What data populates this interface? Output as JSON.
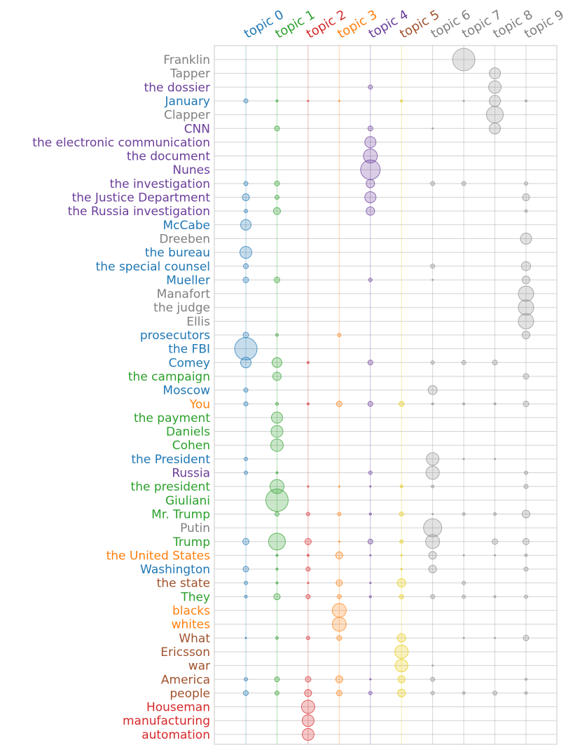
{
  "chart_data": {
    "type": "scatter",
    "grid": true,
    "topics": [
      {
        "label": "topic 0",
        "color": "#1f77b4"
      },
      {
        "label": "topic 1",
        "color": "#2ca02c"
      },
      {
        "label": "topic 2",
        "color": "#d62728"
      },
      {
        "label": "topic 3",
        "color": "#ff7f0e"
      },
      {
        "label": "topic 4",
        "color": "#6a3d9a"
      },
      {
        "label": "topic 5",
        "color": "#a0522d"
      },
      {
        "label": "topic 6",
        "color": "#7f7f7f"
      },
      {
        "label": "topic 7",
        "color": "#7f7f7f"
      },
      {
        "label": "topic 8",
        "color": "#7f7f7f"
      },
      {
        "label": "topic 9",
        "color": "#7f7f7f"
      }
    ],
    "marker_colors": {
      "0": "#1f77b4",
      "1": "#2ca02c",
      "2": "#d62728",
      "3": "#ff7f0e",
      "4": "#6a3d9a",
      "5": "#e6c800",
      "6": "#8c8c8c",
      "7": "#8c8c8c",
      "8": "#8c8c8c",
      "9": "#8c8c8c"
    },
    "rows": [
      {
        "label": "Franklin",
        "topic": 7,
        "points": [
          [
            7,
            16
          ]
        ]
      },
      {
        "label": "Tapper",
        "topic": 7,
        "points": [
          [
            8,
            8
          ]
        ]
      },
      {
        "label": "the dossier",
        "topic": 4,
        "points": [
          [
            4,
            3
          ],
          [
            8,
            9
          ]
        ]
      },
      {
        "label": "January",
        "topic": 0,
        "points": [
          [
            0,
            3
          ],
          [
            1,
            1.5
          ],
          [
            2,
            1
          ],
          [
            3,
            1
          ],
          [
            5,
            1.5
          ],
          [
            7,
            1
          ],
          [
            8,
            8
          ],
          [
            9,
            1.5
          ]
        ]
      },
      {
        "label": "Clapper",
        "topic": 7,
        "points": [
          [
            8,
            12
          ]
        ]
      },
      {
        "label": "CNN",
        "topic": 4,
        "points": [
          [
            1,
            3.5
          ],
          [
            4,
            3.5
          ],
          [
            6,
            1
          ],
          [
            8,
            8
          ]
        ]
      },
      {
        "label": "the electronic communication",
        "topic": 4,
        "points": [
          [
            4,
            8
          ]
        ]
      },
      {
        "label": "the document",
        "topic": 4,
        "points": [
          [
            4,
            10
          ]
        ]
      },
      {
        "label": "Nunes",
        "topic": 4,
        "points": [
          [
            4,
            14
          ]
        ]
      },
      {
        "label": "the investigation",
        "topic": 4,
        "points": [
          [
            0,
            3
          ],
          [
            1,
            3.5
          ],
          [
            4,
            6
          ],
          [
            6,
            3
          ],
          [
            7,
            3
          ],
          [
            9,
            2.5
          ]
        ]
      },
      {
        "label": "the Justice Department",
        "topic": 4,
        "points": [
          [
            0,
            5
          ],
          [
            1,
            3
          ],
          [
            4,
            8
          ],
          [
            9,
            5
          ]
        ]
      },
      {
        "label": "the Russia investigation",
        "topic": 4,
        "points": [
          [
            0,
            2.5
          ],
          [
            1,
            5
          ],
          [
            4,
            6
          ],
          [
            9,
            2
          ]
        ]
      },
      {
        "label": "McCabe",
        "topic": 0,
        "points": [
          [
            0,
            7.5
          ]
        ]
      },
      {
        "label": "Dreeben",
        "topic": 6,
        "points": [
          [
            9,
            8
          ]
        ]
      },
      {
        "label": "the bureau",
        "topic": 0,
        "points": [
          [
            0,
            8.5
          ]
        ]
      },
      {
        "label": "the special counsel",
        "topic": 0,
        "points": [
          [
            0,
            3.5
          ],
          [
            6,
            3
          ],
          [
            9,
            6.5
          ]
        ]
      },
      {
        "label": "Mueller",
        "topic": 0,
        "points": [
          [
            0,
            4
          ],
          [
            1,
            4
          ],
          [
            4,
            2.5
          ],
          [
            6,
            1
          ],
          [
            9,
            5.5
          ]
        ]
      },
      {
        "label": "Manafort",
        "topic": 6,
        "points": [
          [
            9,
            11
          ]
        ]
      },
      {
        "label": "the judge",
        "topic": 6,
        "points": [
          [
            9,
            11
          ]
        ]
      },
      {
        "label": "Ellis",
        "topic": 6,
        "points": [
          [
            9,
            11
          ]
        ]
      },
      {
        "label": "prosecutors",
        "topic": 0,
        "points": [
          [
            0,
            4
          ],
          [
            1,
            2
          ],
          [
            3,
            2.5
          ],
          [
            9,
            5.5
          ]
        ]
      },
      {
        "label": "the FBI",
        "topic": 0,
        "points": [
          [
            0,
            16
          ]
        ]
      },
      {
        "label": "Comey",
        "topic": 0,
        "points": [
          [
            0,
            7.5
          ],
          [
            1,
            7
          ],
          [
            2,
            1.5
          ],
          [
            4,
            3.5
          ],
          [
            6,
            2.5
          ],
          [
            7,
            3
          ],
          [
            8,
            3.5
          ]
        ]
      },
      {
        "label": "the campaign",
        "topic": 1,
        "points": [
          [
            1,
            6
          ],
          [
            9,
            4
          ]
        ]
      },
      {
        "label": "Moscow",
        "topic": 0,
        "points": [
          [
            0,
            3
          ],
          [
            6,
            6.5
          ]
        ]
      },
      {
        "label": "You",
        "topic": 3,
        "points": [
          [
            0,
            3
          ],
          [
            1,
            2
          ],
          [
            2,
            1.5
          ],
          [
            3,
            4
          ],
          [
            4,
            3.5
          ],
          [
            5,
            3.5
          ],
          [
            6,
            1.5
          ],
          [
            7,
            1.5
          ],
          [
            8,
            1.5
          ],
          [
            9,
            4
          ]
        ]
      },
      {
        "label": "the payment",
        "topic": 1,
        "points": [
          [
            1,
            8
          ]
        ]
      },
      {
        "label": "Daniels",
        "topic": 1,
        "points": [
          [
            1,
            8.5
          ]
        ]
      },
      {
        "label": "Cohen",
        "topic": 1,
        "points": [
          [
            1,
            9
          ]
        ]
      },
      {
        "label": "the President",
        "topic": 0,
        "points": [
          [
            0,
            2.5
          ],
          [
            6,
            9
          ],
          [
            7,
            1
          ],
          [
            8,
            1
          ]
        ]
      },
      {
        "label": "Russia",
        "topic": 4,
        "points": [
          [
            0,
            2.5
          ],
          [
            1,
            1.5
          ],
          [
            4,
            2.5
          ],
          [
            6,
            9.5
          ],
          [
            9,
            2.5
          ]
        ]
      },
      {
        "label": "the president",
        "topic": 1,
        "points": [
          [
            1,
            10
          ],
          [
            2,
            1
          ],
          [
            3,
            1
          ],
          [
            4,
            1
          ],
          [
            5,
            2
          ],
          [
            6,
            2
          ],
          [
            9,
            3
          ]
        ]
      },
      {
        "label": "Giuliani",
        "topic": 1,
        "points": [
          [
            1,
            16
          ]
        ]
      },
      {
        "label": "Mr. Trump",
        "topic": 1,
        "points": [
          [
            1,
            3
          ],
          [
            2,
            2.5
          ],
          [
            3,
            2.5
          ],
          [
            4,
            1.5
          ],
          [
            5,
            3
          ],
          [
            6,
            1
          ],
          [
            7,
            2
          ],
          [
            8,
            2
          ],
          [
            9,
            5.5
          ]
        ]
      },
      {
        "label": "Putin",
        "topic": 6,
        "points": [
          [
            6,
            13
          ]
        ]
      },
      {
        "label": "Trump",
        "topic": 1,
        "points": [
          [
            0,
            4.5
          ],
          [
            1,
            12
          ],
          [
            2,
            4.5
          ],
          [
            3,
            1
          ],
          [
            4,
            3.5
          ],
          [
            5,
            2.5
          ],
          [
            6,
            10
          ],
          [
            8,
            4
          ],
          [
            9,
            4.5
          ]
        ]
      },
      {
        "label": "the United States",
        "topic": 3,
        "points": [
          [
            1,
            1.5
          ],
          [
            2,
            1.5
          ],
          [
            3,
            5
          ],
          [
            4,
            1
          ],
          [
            5,
            1
          ],
          [
            6,
            5.5
          ],
          [
            7,
            1
          ],
          [
            8,
            1
          ],
          [
            9,
            2
          ]
        ]
      },
      {
        "label": "Washington",
        "topic": 0,
        "points": [
          [
            0,
            4
          ],
          [
            1,
            1.5
          ],
          [
            2,
            3
          ],
          [
            5,
            1
          ],
          [
            6,
            5.5
          ],
          [
            9,
            3
          ]
        ]
      },
      {
        "label": "the state",
        "topic": 5,
        "points": [
          [
            0,
            2.5
          ],
          [
            1,
            1.5
          ],
          [
            2,
            1
          ],
          [
            3,
            4.5
          ],
          [
            4,
            1
          ],
          [
            5,
            6
          ],
          [
            7,
            2.5
          ]
        ]
      },
      {
        "label": "They",
        "topic": 1,
        "points": [
          [
            0,
            2
          ],
          [
            1,
            4.5
          ],
          [
            2,
            3
          ],
          [
            3,
            3
          ],
          [
            4,
            1.5
          ],
          [
            5,
            3
          ],
          [
            6,
            3
          ],
          [
            7,
            2.5
          ],
          [
            8,
            1.5
          ],
          [
            9,
            2.5
          ]
        ]
      },
      {
        "label": "blacks",
        "topic": 3,
        "points": [
          [
            3,
            10
          ]
        ]
      },
      {
        "label": "whites",
        "topic": 3,
        "points": [
          [
            3,
            10
          ]
        ]
      },
      {
        "label": "What",
        "topic": 5,
        "points": [
          [
            0,
            1
          ],
          [
            1,
            2
          ],
          [
            2,
            2.5
          ],
          [
            3,
            3.5
          ],
          [
            5,
            6
          ],
          [
            7,
            1
          ],
          [
            8,
            1
          ],
          [
            9,
            4
          ]
        ]
      },
      {
        "label": "Ericsson",
        "topic": 5,
        "points": [
          [
            5,
            9.5
          ]
        ]
      },
      {
        "label": "war",
        "topic": 5,
        "points": [
          [
            5,
            9
          ],
          [
            6,
            1
          ]
        ]
      },
      {
        "label": "America",
        "topic": 5,
        "points": [
          [
            0,
            2.5
          ],
          [
            1,
            3.5
          ],
          [
            2,
            4
          ],
          [
            3,
            5
          ],
          [
            4,
            1
          ],
          [
            5,
            5
          ],
          [
            6,
            3
          ],
          [
            9,
            1.5
          ]
        ]
      },
      {
        "label": "people",
        "topic": 5,
        "points": [
          [
            0,
            3.5
          ],
          [
            1,
            3
          ],
          [
            2,
            5
          ],
          [
            3,
            4
          ],
          [
            4,
            2.5
          ],
          [
            5,
            5.5
          ],
          [
            6,
            2.5
          ],
          [
            7,
            2
          ],
          [
            8,
            3
          ],
          [
            9,
            2
          ]
        ]
      },
      {
        "label": "Houseman",
        "topic": 2,
        "points": [
          [
            2,
            9.5
          ]
        ]
      },
      {
        "label": "manufacturing",
        "topic": 2,
        "points": [
          [
            2,
            8.5
          ]
        ]
      },
      {
        "label": "automation",
        "topic": 2,
        "points": [
          [
            2,
            8.5
          ]
        ]
      }
    ]
  }
}
